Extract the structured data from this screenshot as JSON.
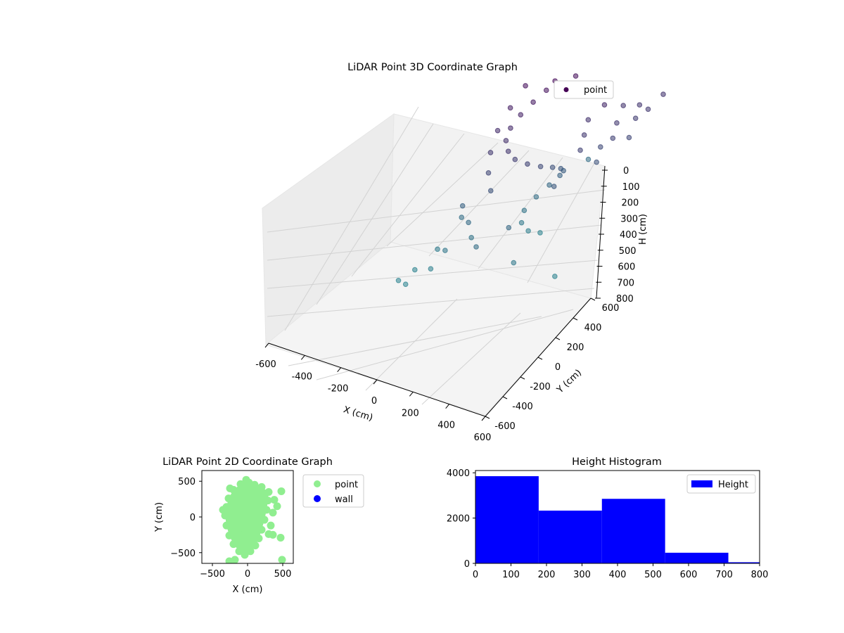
{
  "chart_data": [
    {
      "type": "scatter3d",
      "title": "LiDAR Point 3D Coordinate Graph",
      "xlabel": "X (cm)",
      "ylabel": "Y (cm)",
      "zlabel": "H (cm)",
      "xlim": [
        -600,
        600
      ],
      "ylim": [
        -600,
        600
      ],
      "zlim": [
        800,
        0
      ],
      "x_ticks": [
        -600,
        -400,
        -200,
        0,
        200,
        400,
        600
      ],
      "y_ticks": [
        -600,
        -400,
        -200,
        0,
        200,
        400,
        600
      ],
      "z_ticks": [
        0,
        100,
        200,
        300,
        400,
        500,
        600,
        700,
        800
      ],
      "grid": true,
      "legend": {
        "position": "top-right",
        "entries": [
          {
            "label": "point",
            "color": "#440154"
          }
        ]
      },
      "colormap": "viridis (height)",
      "series": [
        {
          "name": "point",
          "points": [
            [
              -20,
              120,
              40
            ],
            [
              -60,
              110,
              80
            ],
            [
              -110,
              80,
              120
            ],
            [
              -150,
              40,
              160
            ],
            [
              -170,
              -10,
              200
            ],
            [
              -160,
              -60,
              240
            ],
            [
              -120,
              -100,
              280
            ],
            [
              -70,
              -120,
              320
            ],
            [
              -10,
              -110,
              360
            ],
            [
              40,
              -80,
              400
            ],
            [
              70,
              -30,
              440
            ],
            [
              80,
              20,
              480
            ],
            [
              60,
              70,
              520
            ],
            [
              20,
              100,
              560
            ],
            [
              -30,
              90,
              600
            ],
            [
              -80,
              60,
              640
            ],
            [
              -110,
              10,
              680
            ],
            [
              -90,
              -40,
              720
            ],
            [
              -40,
              -60,
              760
            ],
            [
              10,
              -40,
              790
            ],
            [
              180,
              120,
              150
            ],
            [
              200,
              60,
              250
            ],
            [
              220,
              0,
              300
            ],
            [
              240,
              -60,
              350
            ],
            [
              260,
              100,
              200
            ],
            [
              280,
              40,
              400
            ],
            [
              300,
              -20,
              450
            ],
            [
              320,
              160,
              250
            ],
            [
              340,
              80,
              300
            ],
            [
              360,
              20,
              350
            ],
            [
              380,
              200,
              280
            ],
            [
              400,
              140,
              320
            ],
            [
              420,
              60,
              380
            ],
            [
              440,
              180,
              300
            ],
            [
              480,
              240,
              260
            ],
            [
              120,
              160,
              100
            ],
            [
              140,
              -120,
              500
            ],
            [
              -200,
              150,
              60
            ],
            [
              -240,
              90,
              140
            ],
            [
              -260,
              20,
              220
            ],
            [
              -250,
              -50,
              300
            ],
            [
              -220,
              -110,
              380
            ],
            [
              -180,
              -150,
              460
            ],
            [
              50,
              180,
              60
            ],
            [
              100,
              150,
              90
            ],
            [
              -380,
              -80,
              560
            ],
            [
              -300,
              -150,
              620
            ],
            [
              -250,
              -200,
              680
            ],
            [
              -420,
              -30,
              650
            ],
            [
              -350,
              -260,
              700
            ],
            [
              -460,
              -160,
              740
            ],
            [
              -400,
              -300,
              770
            ],
            [
              -520,
              -250,
              790
            ],
            [
              -480,
              -380,
              795
            ],
            [
              -560,
              -320,
              800
            ],
            [
              150,
              -450,
              720
            ],
            [
              420,
              -520,
              790
            ],
            [
              -100,
              -380,
              640
            ],
            [
              20,
              -300,
              600
            ],
            [
              -20,
              380,
              640
            ]
          ]
        }
      ]
    },
    {
      "type": "scatter",
      "title": "LiDAR Point 2D Coordinate Graph",
      "xlabel": "X (cm)",
      "ylabel": "Y (cm)",
      "xlim": [
        -650,
        650
      ],
      "ylim": [
        -650,
        650
      ],
      "x_ticks": [
        -500,
        0,
        500
      ],
      "y_ticks": [
        -500,
        0,
        500
      ],
      "legend": {
        "position": "outside-right",
        "entries": [
          {
            "label": "point",
            "color": "#90ee90"
          },
          {
            "label": "wall",
            "color": "#0000ff"
          }
        ]
      },
      "series": [
        {
          "name": "point",
          "color": "#90ee90",
          "points": [
            [
              -20,
              520
            ],
            [
              -100,
              460
            ],
            [
              -200,
              380
            ],
            [
              -270,
              260
            ],
            [
              -300,
              140
            ],
            [
              -320,
              20
            ],
            [
              -300,
              -120
            ],
            [
              -260,
              -260
            ],
            [
              -200,
              -380
            ],
            [
              -120,
              -480
            ],
            [
              -40,
              -530
            ],
            [
              40,
              -480
            ],
            [
              110,
              -400
            ],
            [
              160,
              -300
            ],
            [
              200,
              -180
            ],
            [
              240,
              -40
            ],
            [
              270,
              100
            ],
            [
              290,
              230
            ],
            [
              300,
              350
            ],
            [
              200,
              420
            ],
            [
              100,
              450
            ],
            [
              20,
              480
            ],
            [
              -150,
              300
            ],
            [
              -80,
              150
            ],
            [
              0,
              0
            ],
            [
              80,
              -120
            ],
            [
              -60,
              -250
            ],
            [
              130,
              200
            ],
            [
              230,
              300
            ],
            [
              380,
              240
            ],
            [
              420,
              150
            ],
            [
              360,
              60
            ],
            [
              330,
              -120
            ],
            [
              300,
              -240
            ],
            [
              360,
              -250
            ],
            [
              480,
              360
            ],
            [
              490,
              -600
            ],
            [
              -260,
              -620
            ],
            [
              -180,
              -600
            ],
            [
              470,
              -290
            ],
            [
              -250,
              400
            ],
            [
              -350,
              100
            ]
          ]
        },
        {
          "name": "wall",
          "color": "#0000ff",
          "points": []
        }
      ]
    },
    {
      "type": "bar",
      "title": "Height Histogram",
      "xlabel": "",
      "ylabel": "",
      "xlim": [
        0,
        800
      ],
      "ylim": [
        0,
        4100
      ],
      "x_ticks": [
        0,
        100,
        200,
        300,
        400,
        500,
        600,
        700,
        800
      ],
      "y_ticks": [
        0,
        2000,
        4000
      ],
      "color": "#0000ff",
      "legend": {
        "position": "top-right",
        "entries": [
          {
            "label": "Height",
            "color": "#0000ff"
          }
        ]
      },
      "bins": [
        {
          "start": 0,
          "end": 178,
          "count": 3850
        },
        {
          "start": 178,
          "end": 356,
          "count": 2330
        },
        {
          "start": 356,
          "end": 534,
          "count": 2850
        },
        {
          "start": 534,
          "end": 712,
          "count": 470
        },
        {
          "start": 712,
          "end": 800,
          "count": 50
        }
      ]
    }
  ]
}
